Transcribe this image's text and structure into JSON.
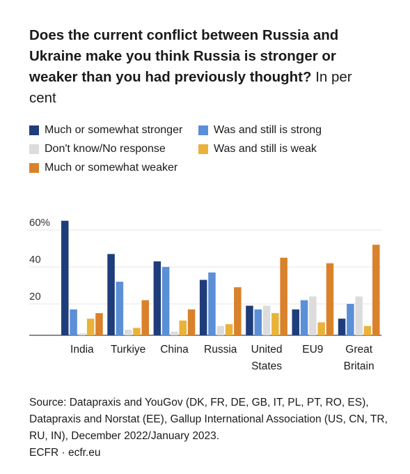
{
  "title": {
    "text": "Does the current conflict between Russia and Ukraine make you think Russia is stronger or weaker than you had previously thought?",
    "unit": "In per cent"
  },
  "colors": {
    "much_stronger": "#1f3d7a",
    "still_strong": "#5b8fd6",
    "dont_know": "#dcdcdc",
    "still_weak": "#e9b23a",
    "much_weaker": "#d9822b"
  },
  "chart_data": {
    "type": "bar",
    "categories": [
      "India",
      "Turkiye",
      "China",
      "Russia",
      "United States",
      "EU9",
      "Great Britain"
    ],
    "series": [
      {
        "name": "Much or somewhat stronger",
        "values": [
          62,
          44,
          40,
          30,
          16,
          14,
          9
        ]
      },
      {
        "name": "Was and still is strong",
        "values": [
          14,
          29,
          37,
          34,
          14,
          19,
          17
        ]
      },
      {
        "name": "Don't know/No response",
        "values": [
          1,
          3,
          2,
          5,
          16,
          21,
          21
        ]
      },
      {
        "name": "Was and still is weak",
        "values": [
          9,
          4,
          8,
          6,
          12,
          7,
          5
        ]
      },
      {
        "name": "Much or somewhat weaker",
        "values": [
          12,
          19,
          14,
          26,
          42,
          39,
          49
        ]
      }
    ],
    "yticks": [
      "60%",
      "40",
      "20"
    ],
    "ytick_values": [
      60,
      40,
      20
    ],
    "ylim": [
      0,
      65
    ],
    "xlabel": "",
    "ylabel": "",
    "grid": true,
    "legend_position": "top"
  },
  "source": {
    "text": "Source: Datapraxis and YouGov (DK, FR, DE, GB, IT, PL, PT, RO, ES), Datapraxis and Norstat (EE), Gallup International Association (US, CN, TR, RU, IN), December 2022/January 2023.",
    "credit": "ECFR · ecfr.eu"
  }
}
